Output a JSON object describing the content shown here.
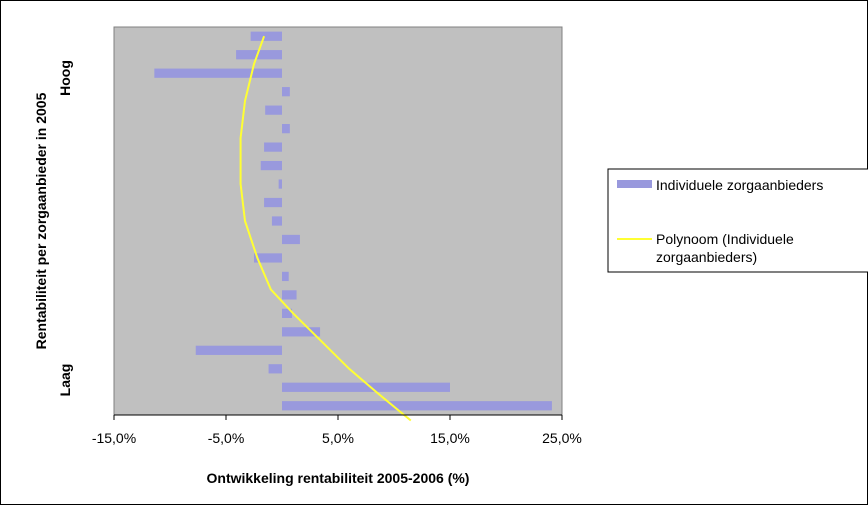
{
  "chart_data": {
    "type": "bar",
    "orientation": "horizontal",
    "xlabel": "Ontwikkeling rentabiliteit 2005-2006 (%)",
    "ylabel": "Rentabiliteit per zorgaanbieder in 2005",
    "y_end_labels": {
      "top": "Hoog",
      "bottom": "Laag"
    },
    "xlim": [
      -0.15,
      0.25
    ],
    "xticks": [
      -0.15,
      -0.05,
      0.05,
      0.15,
      0.25
    ],
    "xtick_labels": [
      "-15,0%",
      "-5,0%",
      "5,0%",
      "15,0%",
      "25,0%"
    ],
    "grid": false,
    "plot_background": "#C0C0C0",
    "legend_position": "right",
    "series": [
      {
        "name": "Individuele zorgaanbieders",
        "kind": "bar",
        "color": "#9999DD",
        "values": [
          -0.028,
          -0.041,
          -0.114,
          0.007,
          -0.015,
          0.007,
          -0.016,
          -0.019,
          -0.003,
          -0.016,
          -0.009,
          0.016,
          -0.025,
          0.006,
          0.013,
          0.009,
          0.034,
          -0.077,
          -0.012,
          0.15,
          0.241
        ]
      },
      {
        "name": "Polynoom (Individuele zorgaanbieders)",
        "kind": "trendline",
        "color": "#FFFF33",
        "points": [
          [
            -0.016,
            0
          ],
          [
            -0.025,
            1.5
          ],
          [
            -0.033,
            3.5
          ],
          [
            -0.037,
            5.5
          ],
          [
            -0.037,
            8
          ],
          [
            -0.033,
            10
          ],
          [
            -0.022,
            12
          ],
          [
            -0.01,
            13.7
          ],
          [
            0.01,
            15
          ],
          [
            0.035,
            16.5
          ],
          [
            0.06,
            18
          ],
          [
            0.085,
            19.3
          ],
          [
            0.115,
            20.8
          ]
        ]
      }
    ]
  },
  "legend": {
    "items": [
      {
        "label": "Individuele zorgaanbieders",
        "swatch": "bar",
        "color": "#9999DD"
      },
      {
        "label_lines": [
          "Polynoom (Individuele",
          "zorgaanbieders)"
        ],
        "swatch": "line",
        "color": "#FFFF33"
      }
    ]
  }
}
